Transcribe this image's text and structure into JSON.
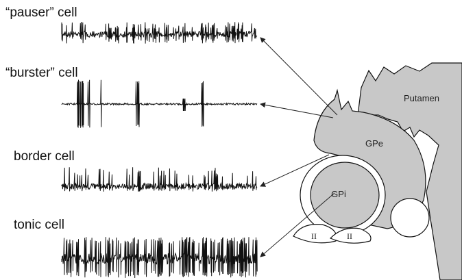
{
  "cells": [
    {
      "label": "“pauser” cell"
    },
    {
      "label": "“burster” cell"
    },
    {
      "label": "border cell"
    },
    {
      "label": "tonic cell"
    }
  ],
  "regions": {
    "putamen": "Putamen",
    "gpe": "GPe",
    "gpi": "GPi"
  },
  "markers": [
    "II",
    "II"
  ]
}
